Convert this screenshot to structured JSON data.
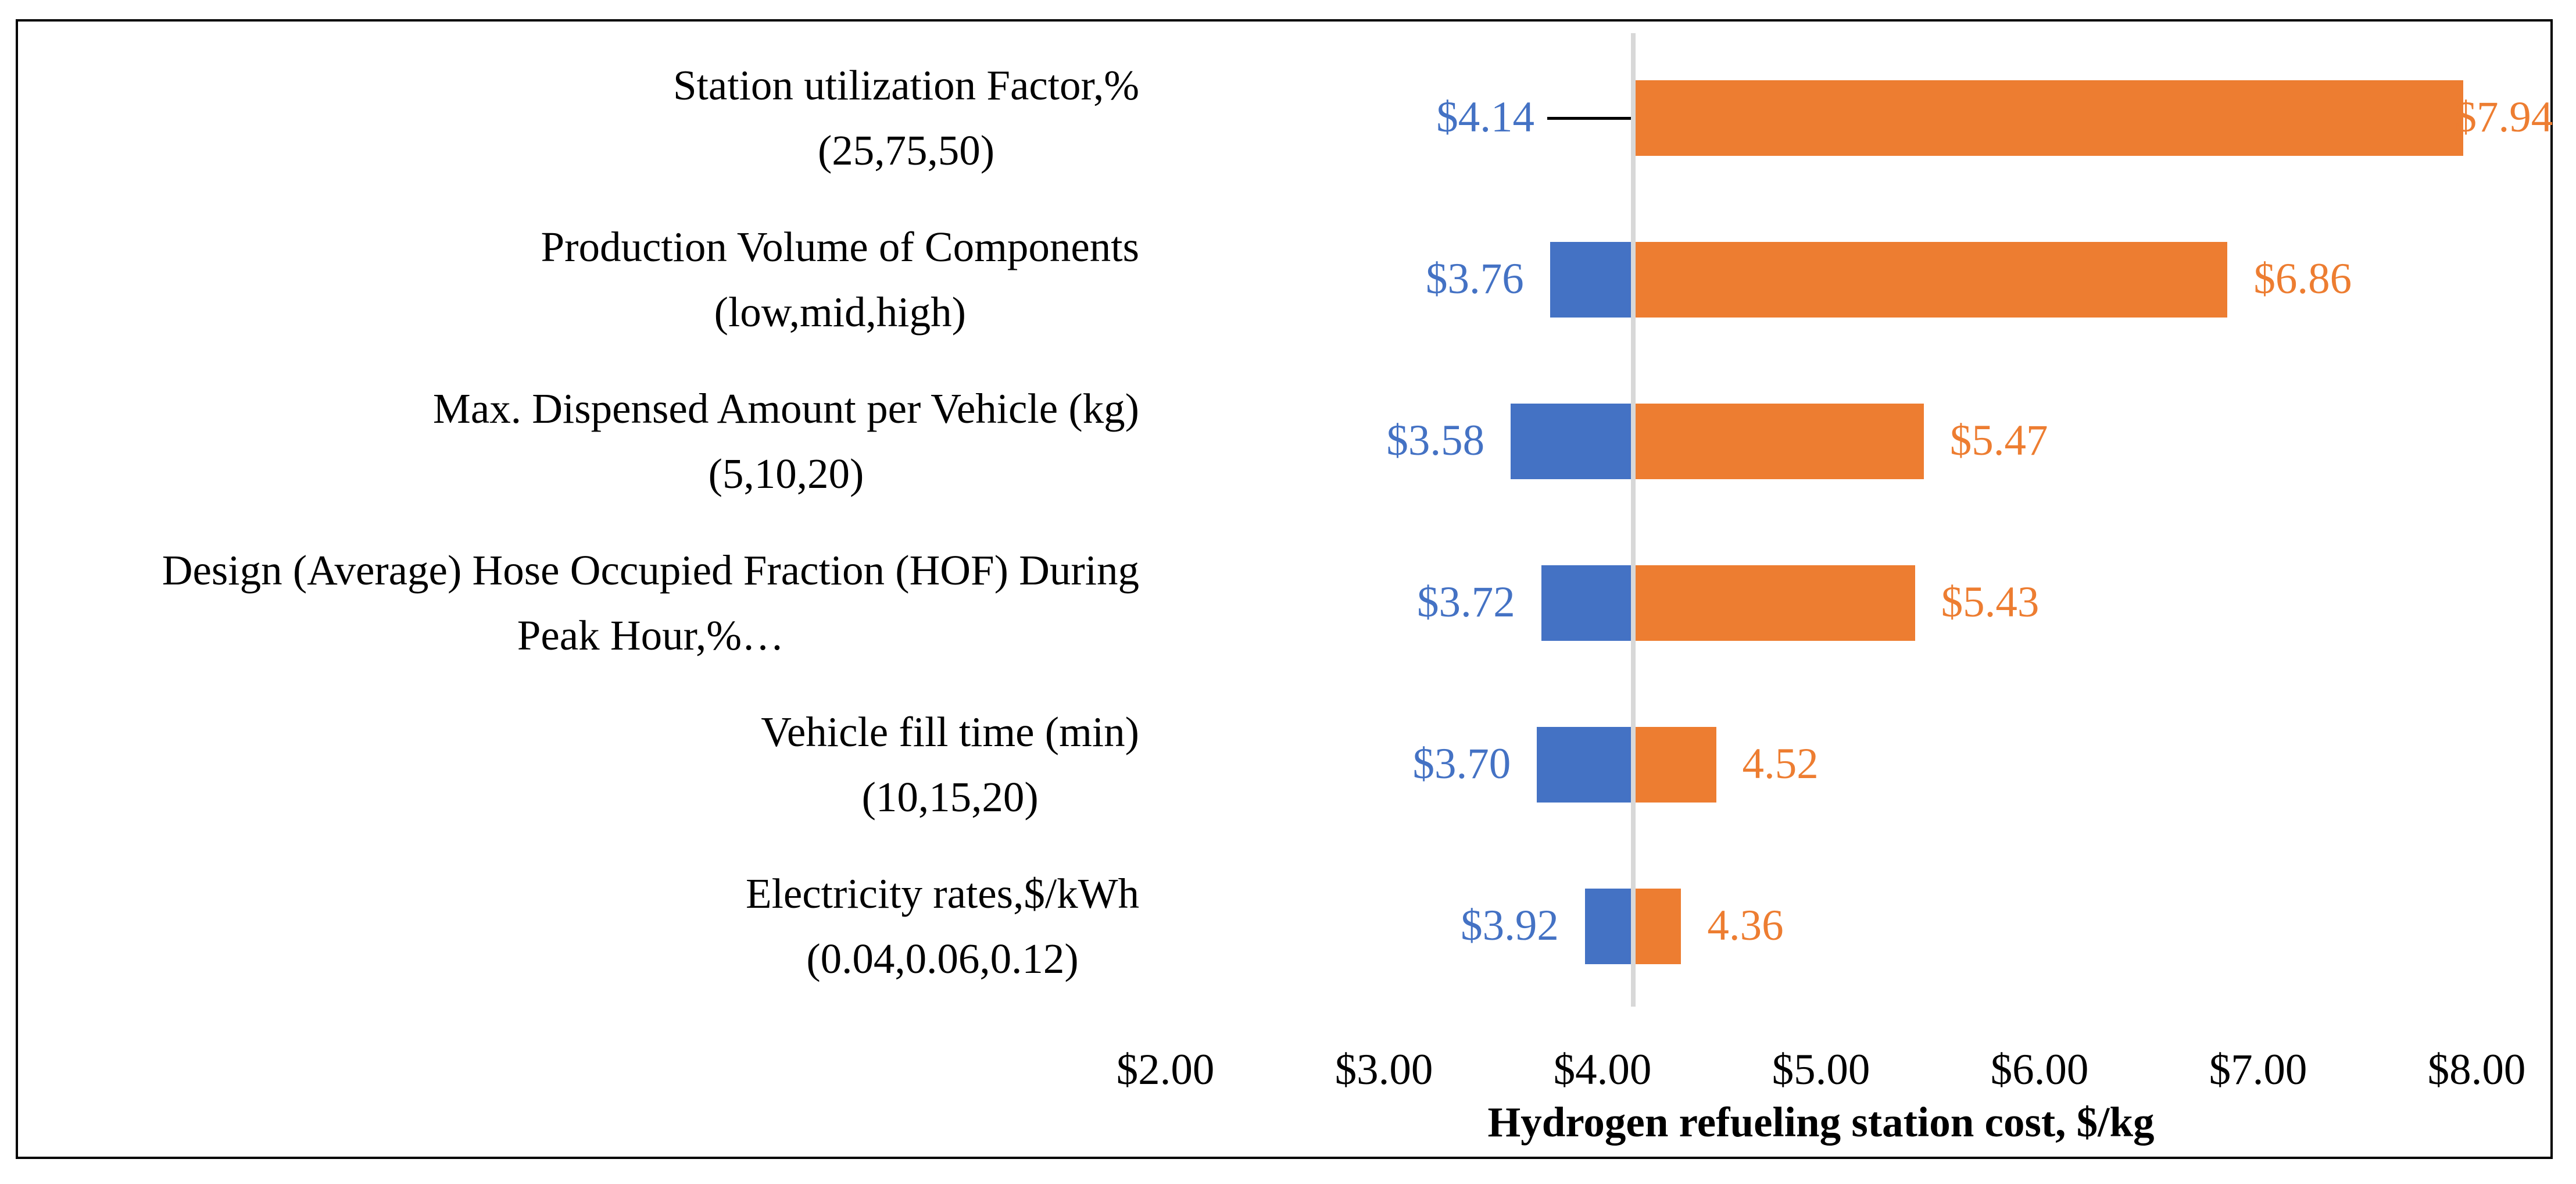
{
  "figure": {
    "background": "#FFFFFF",
    "border_color": "#000000"
  },
  "chart_data": {
    "type": "bar",
    "subtype": "tornado-horizontal",
    "title": "",
    "xlabel": "Hydrogen refueling station cost, $/kg",
    "ylabel": "",
    "xlim": [
      2,
      8
    ],
    "x_tick_step": 1,
    "x_tick_labels": [
      "$2.00",
      "$3.00",
      "$4.00",
      "$5.00",
      "$6.00",
      "$7.00",
      "$8.00"
    ],
    "baseline_value": 4.14,
    "grid": false,
    "legend": "none",
    "colors": {
      "low_bar": "#4472C4",
      "high_bar": "#ED7D31",
      "low_label_text": "#4472C4",
      "high_label_text": "#ED7D31",
      "baseline_line": "#D8D8D8",
      "leader_line": "#000000",
      "axis_text": "#000000"
    },
    "rows": [
      {
        "label_lines": [
          "Station utilization Factor,%",
          "(25,75,50)"
        ],
        "low": 4.14,
        "high": 7.94,
        "low_label": "$4.14",
        "high_label": "$7.94",
        "low_label_callout": true,
        "high_label_at_bar_end": true
      },
      {
        "label_lines": [
          "Production Volume of Components",
          "(low,mid,high)"
        ],
        "low": 3.76,
        "high": 6.86,
        "low_label": "$3.76",
        "high_label": "$6.86"
      },
      {
        "label_lines": [
          "Max. Dispensed Amount per Vehicle (kg)",
          "(5,10,20)"
        ],
        "low": 3.58,
        "high": 5.47,
        "low_label": "$3.58",
        "high_label": "$5.47"
      },
      {
        "label_lines": [
          "Design (Average) Hose Occupied Fraction (HOF) During",
          "Peak Hour,%…"
        ],
        "low": 3.72,
        "high": 5.43,
        "low_label": "$3.72",
        "high_label": "$5.43"
      },
      {
        "label_lines": [
          "Vehicle fill time (min)",
          "(10,15,20)"
        ],
        "low": 3.7,
        "high": 4.52,
        "low_label": "$3.70",
        "high_label": "4.52"
      },
      {
        "label_lines": [
          "Electricity rates,$/kWh",
          "(0.04,0.06,0.12)"
        ],
        "low": 3.92,
        "high": 4.36,
        "low_label": "$3.92",
        "high_label": "4.36"
      }
    ]
  }
}
